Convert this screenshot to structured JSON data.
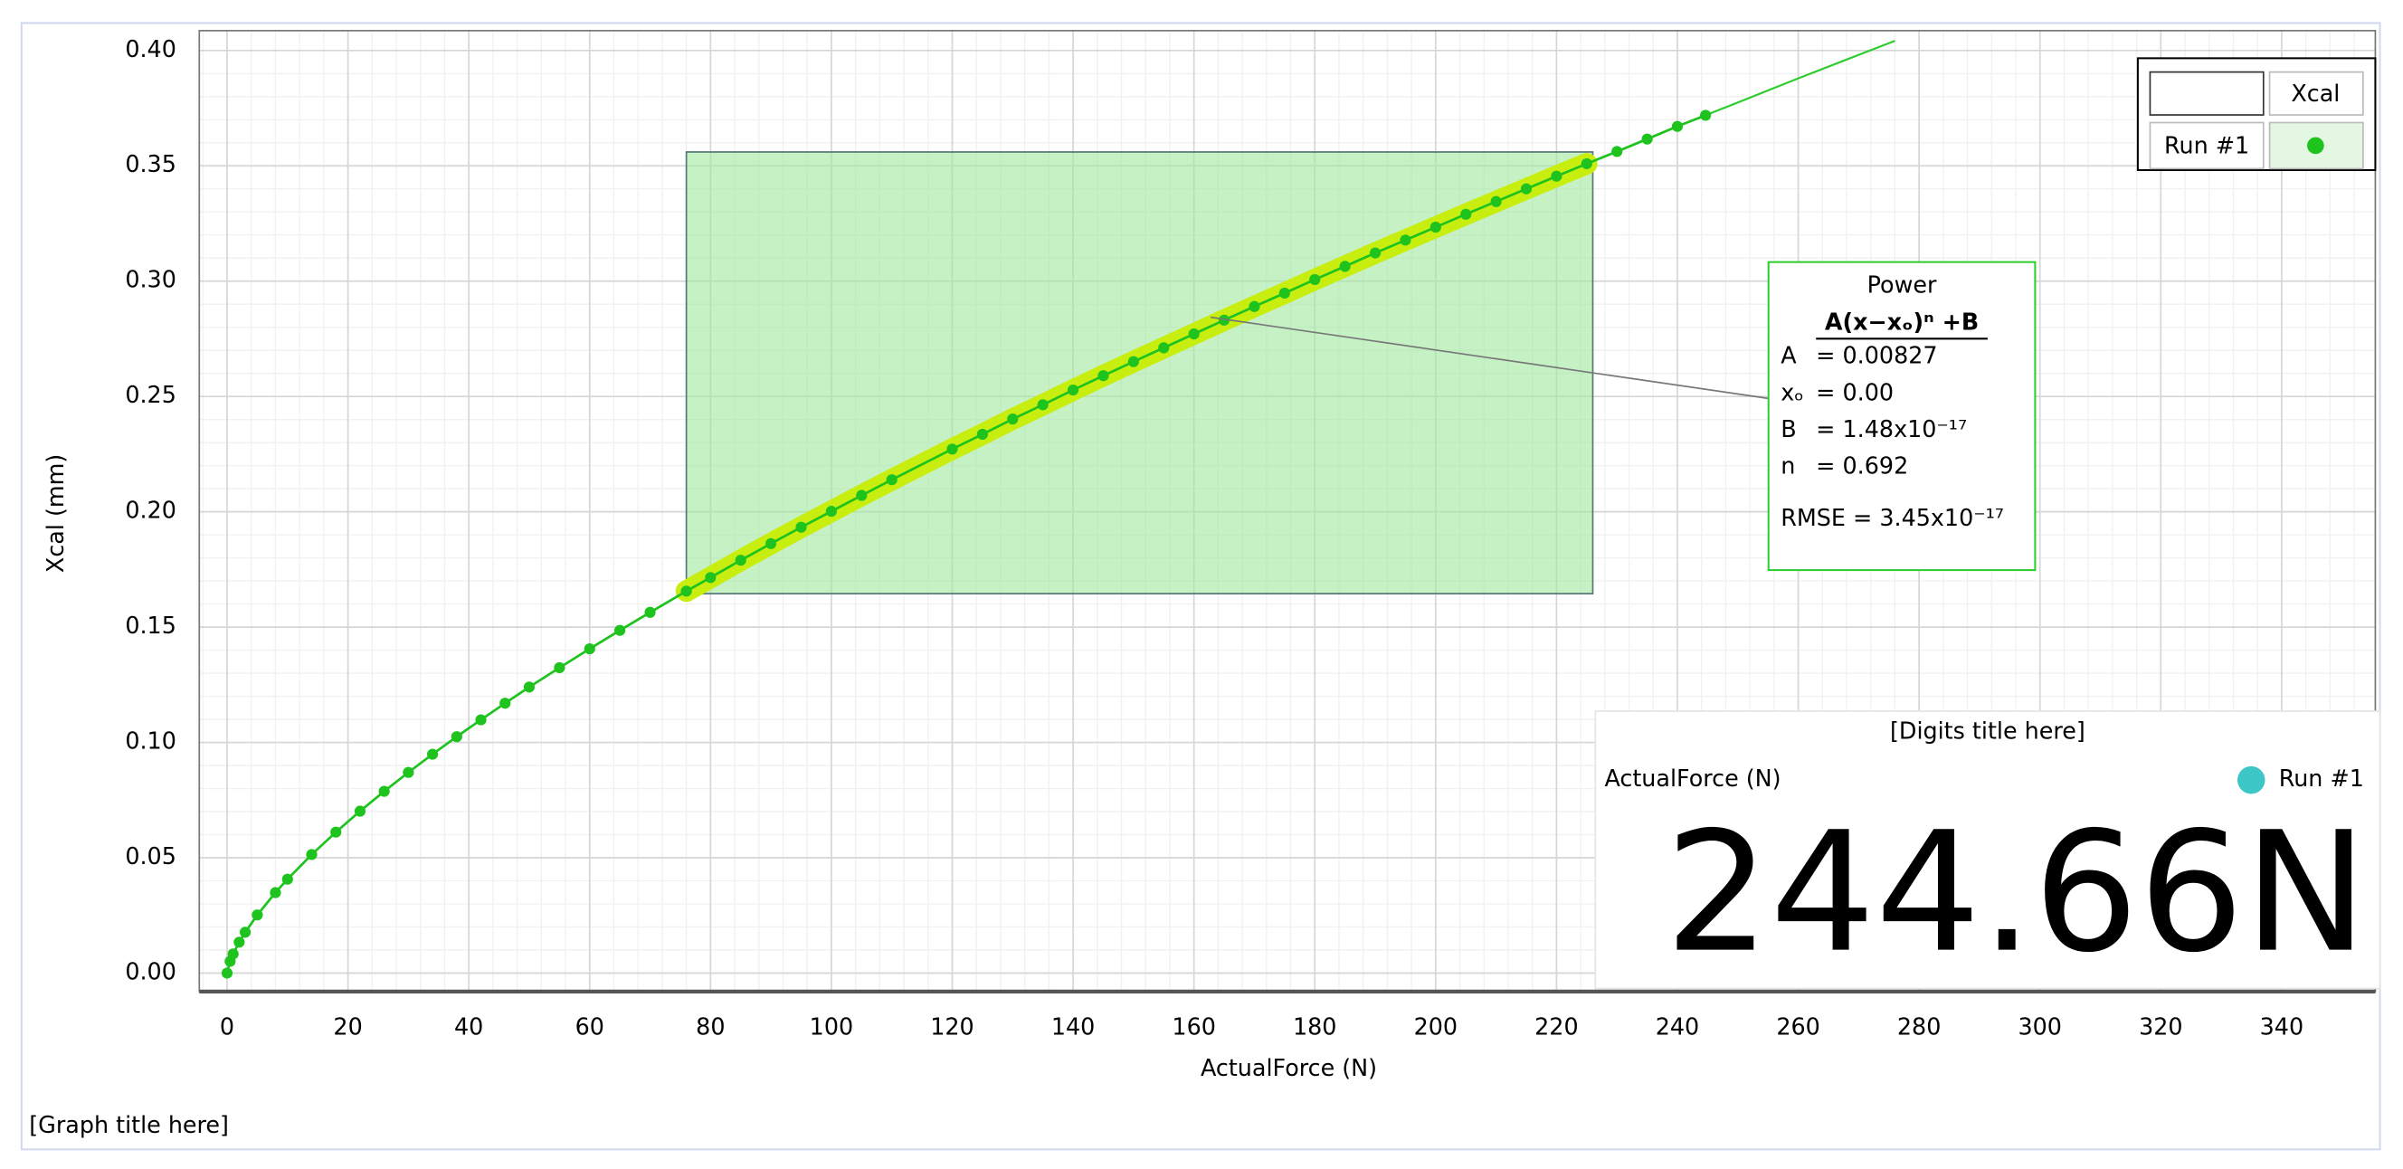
{
  "chart_data": {
    "type": "scatter",
    "title": "[Graph title here]",
    "x_label": "ActualForce (N)",
    "y_label": "Xcal (mm)",
    "xlim": [
      -4.6,
      355.5
    ],
    "ylim": [
      -0.008,
      0.4086
    ],
    "xticks": [
      0,
      20,
      40,
      60,
      80,
      100,
      120,
      140,
      160,
      180,
      200,
      220,
      240,
      260,
      280,
      300,
      320,
      340
    ],
    "yticks": [
      {
        "value": 0,
        "label": "0.00"
      },
      {
        "value": 0.05,
        "label": "0.05"
      },
      {
        "value": 0.1,
        "label": "0.10"
      },
      {
        "value": 0.15,
        "label": "0.15"
      },
      {
        "value": 0.2,
        "label": "0.20"
      },
      {
        "value": 0.25,
        "label": "0.25"
      },
      {
        "value": 0.3,
        "label": "0.30"
      },
      {
        "value": 0.35,
        "label": "0.35"
      },
      {
        "value": 0.4,
        "label": "0.40"
      }
    ],
    "grid": true,
    "legend": "upper right",
    "legend_header": "Xcal",
    "series": [
      {
        "name": "Run #1",
        "color": "#1ec31e",
        "x": [
          0,
          0.5,
          1,
          2,
          3,
          5,
          8,
          10,
          14,
          18,
          22,
          26,
          30,
          34,
          38,
          42,
          46,
          50,
          55,
          60,
          65,
          70,
          76,
          80,
          85,
          90,
          95,
          100,
          105,
          110,
          120,
          125,
          130,
          135,
          140,
          145,
          150,
          155,
          160,
          165,
          170,
          175,
          180,
          185,
          190,
          195,
          200,
          205,
          210,
          215,
          220,
          225,
          230,
          235,
          240,
          244.66
        ],
        "values": [
          0,
          0.0051,
          0.0083,
          0.0134,
          0.0177,
          0.0252,
          0.0349,
          0.0407,
          0.0514,
          0.0611,
          0.0702,
          0.0788,
          0.087,
          0.0949,
          0.1025,
          0.1098,
          0.117,
          0.124,
          0.1324,
          0.1406,
          0.1486,
          0.1564,
          0.1656,
          0.1715,
          0.179,
          0.1862,
          0.1933,
          0.2002,
          0.2071,
          0.2139,
          0.2272,
          0.2336,
          0.2402,
          0.2464,
          0.2528,
          0.259,
          0.2651,
          0.2711,
          0.2771,
          0.2831,
          0.289,
          0.2948,
          0.3007,
          0.3064,
          0.3122,
          0.3178,
          0.3234,
          0.329,
          0.3345,
          0.34,
          0.3455,
          0.3509,
          0.3562,
          0.3616,
          0.3671,
          0.3719
        ]
      }
    ],
    "selection": {
      "color": "#9ee89e",
      "highlight": "#c8ee10",
      "x": [
        76,
        226
      ],
      "y": [
        0.1645,
        0.356
      ]
    },
    "fit": {
      "color": "#2ecc2e",
      "x": [
        244.66,
        260,
        276
      ],
      "values": [
        0.3719,
        0.3879,
        0.4042
      ],
      "title": "Power",
      "formula": "A(x−xₒ)ⁿ +B",
      "params": [
        {
          "name": "A",
          "value": "= 0.00827"
        },
        {
          "name": "xₒ",
          "value": "= 0.00"
        },
        {
          "name": "B",
          "value": "= 1.48x10⁻¹⁷"
        },
        {
          "name": "n",
          "value": "= 0.692"
        }
      ],
      "rmse": "RMSE = 3.45x10⁻¹⁷"
    },
    "digits": {
      "title": "[Digits title here]",
      "label": "ActualForce (N)",
      "series": "Run #1",
      "color": "#3cc6c6",
      "value": "244.66N"
    }
  }
}
